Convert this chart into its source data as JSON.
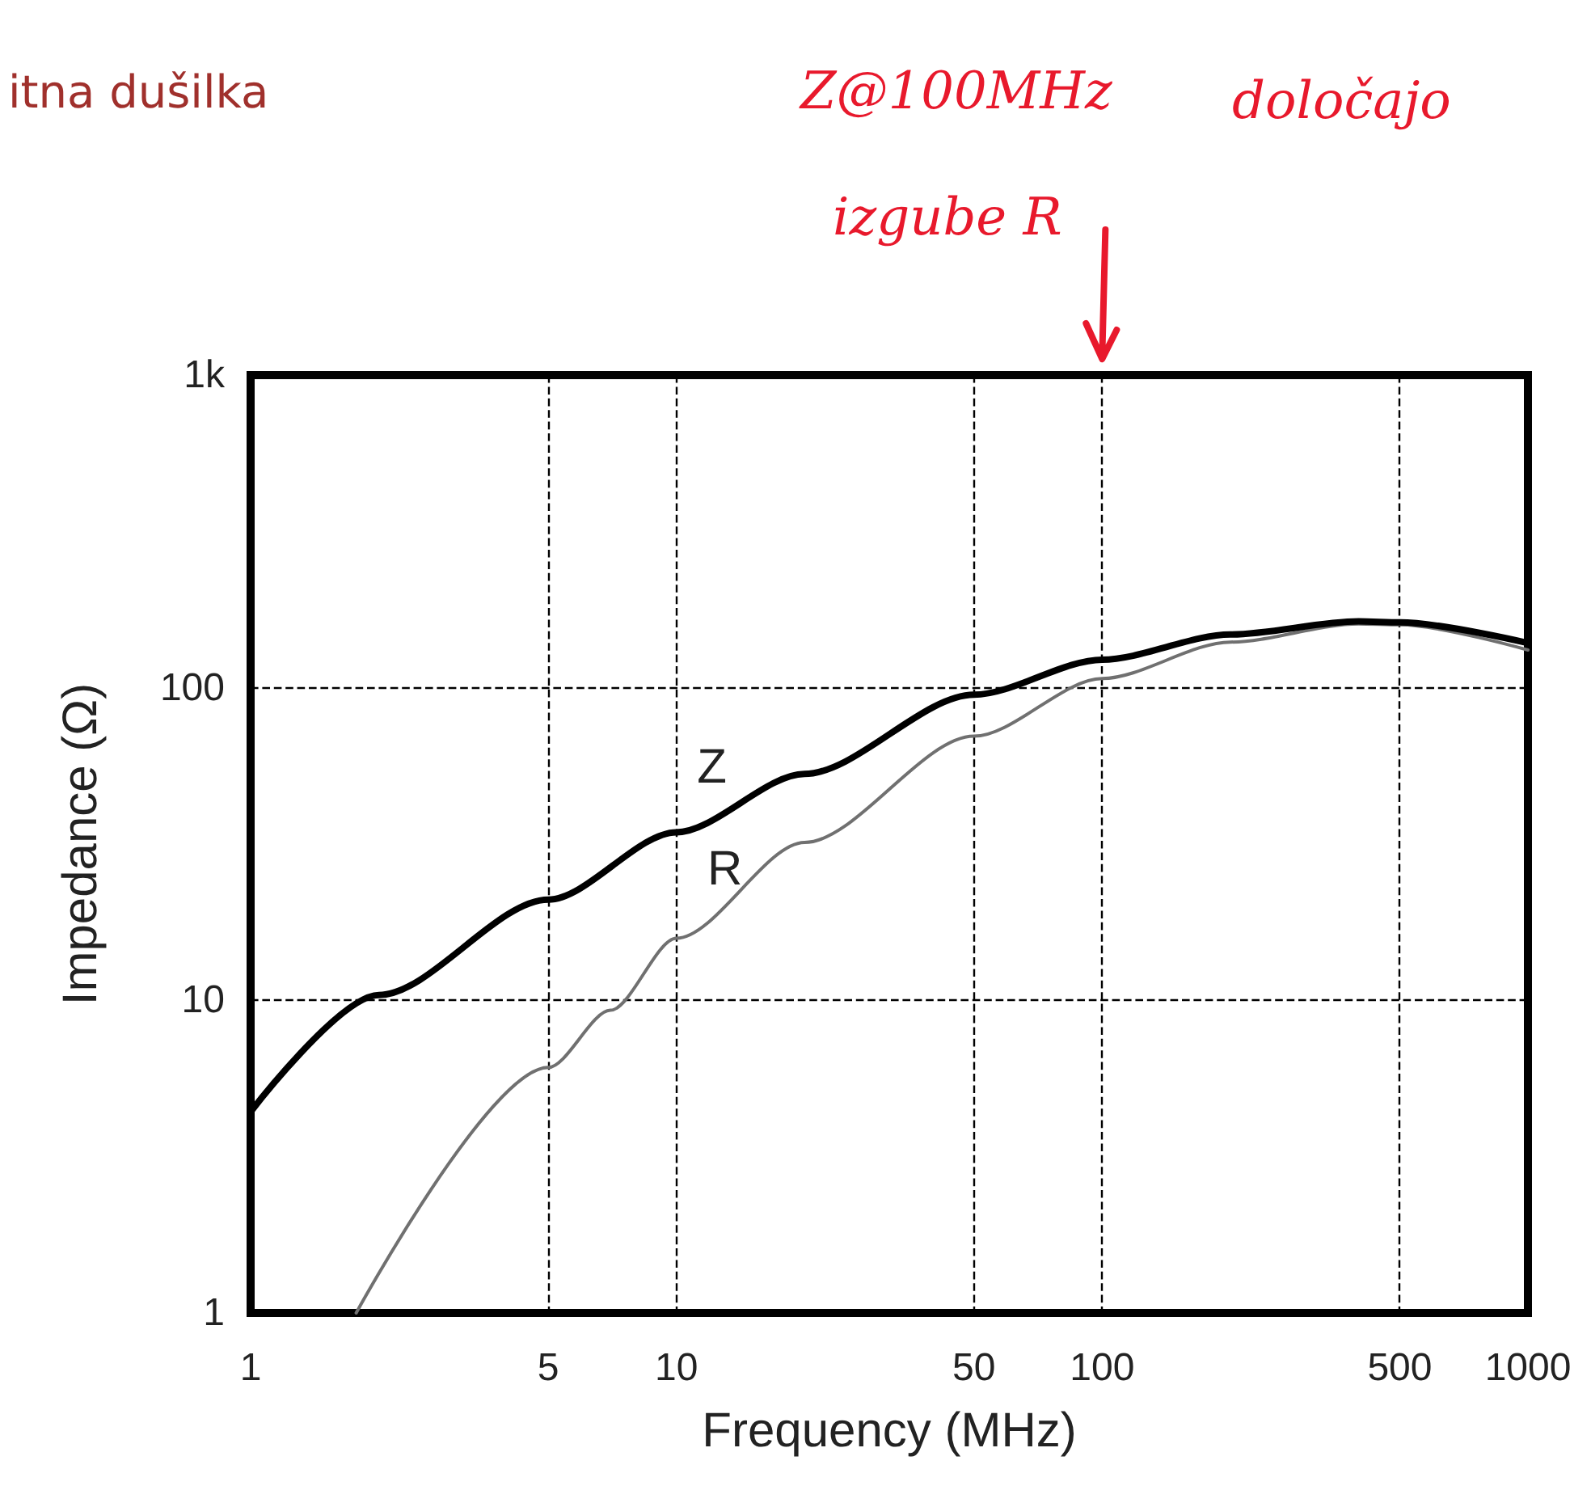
{
  "chart_data": {
    "type": "line",
    "title": "itna dušilka",
    "xlabel": "Frequency (MHz)",
    "ylabel": "Impedance (Ω)",
    "log": "xy",
    "grid": true,
    "marker": "none",
    "line_style": "solid",
    "xlim": [
      1,
      1000
    ],
    "xticks": [
      1,
      5,
      10,
      50,
      100,
      500,
      1000
    ],
    "ylim": [
      1,
      1000
    ],
    "yticks": [
      1,
      10,
      100,
      {
        "value": 1000,
        "label": "1k"
      }
    ],
    "series": [
      {
        "name": "Z",
        "color": "#000000",
        "x": [
          1,
          2,
          5,
          10,
          20,
          50,
          100,
          200,
          400,
          500,
          1000
        ],
        "values": [
          4.4,
          10.4,
          21,
          34.5,
          53,
          95,
          123,
          148,
          163,
          162,
          139
        ]
      },
      {
        "name": "R",
        "color": "#707070",
        "x": [
          1.77,
          5,
          7,
          10,
          20,
          50,
          100,
          200,
          400,
          500,
          1000
        ],
        "values": [
          1,
          6.1,
          9.3,
          15.8,
          32,
          70,
          107,
          140,
          160,
          159,
          132
        ]
      }
    ],
    "annotations": [
      "Z@100MHz",
      "določajo",
      "izgube R"
    ]
  }
}
